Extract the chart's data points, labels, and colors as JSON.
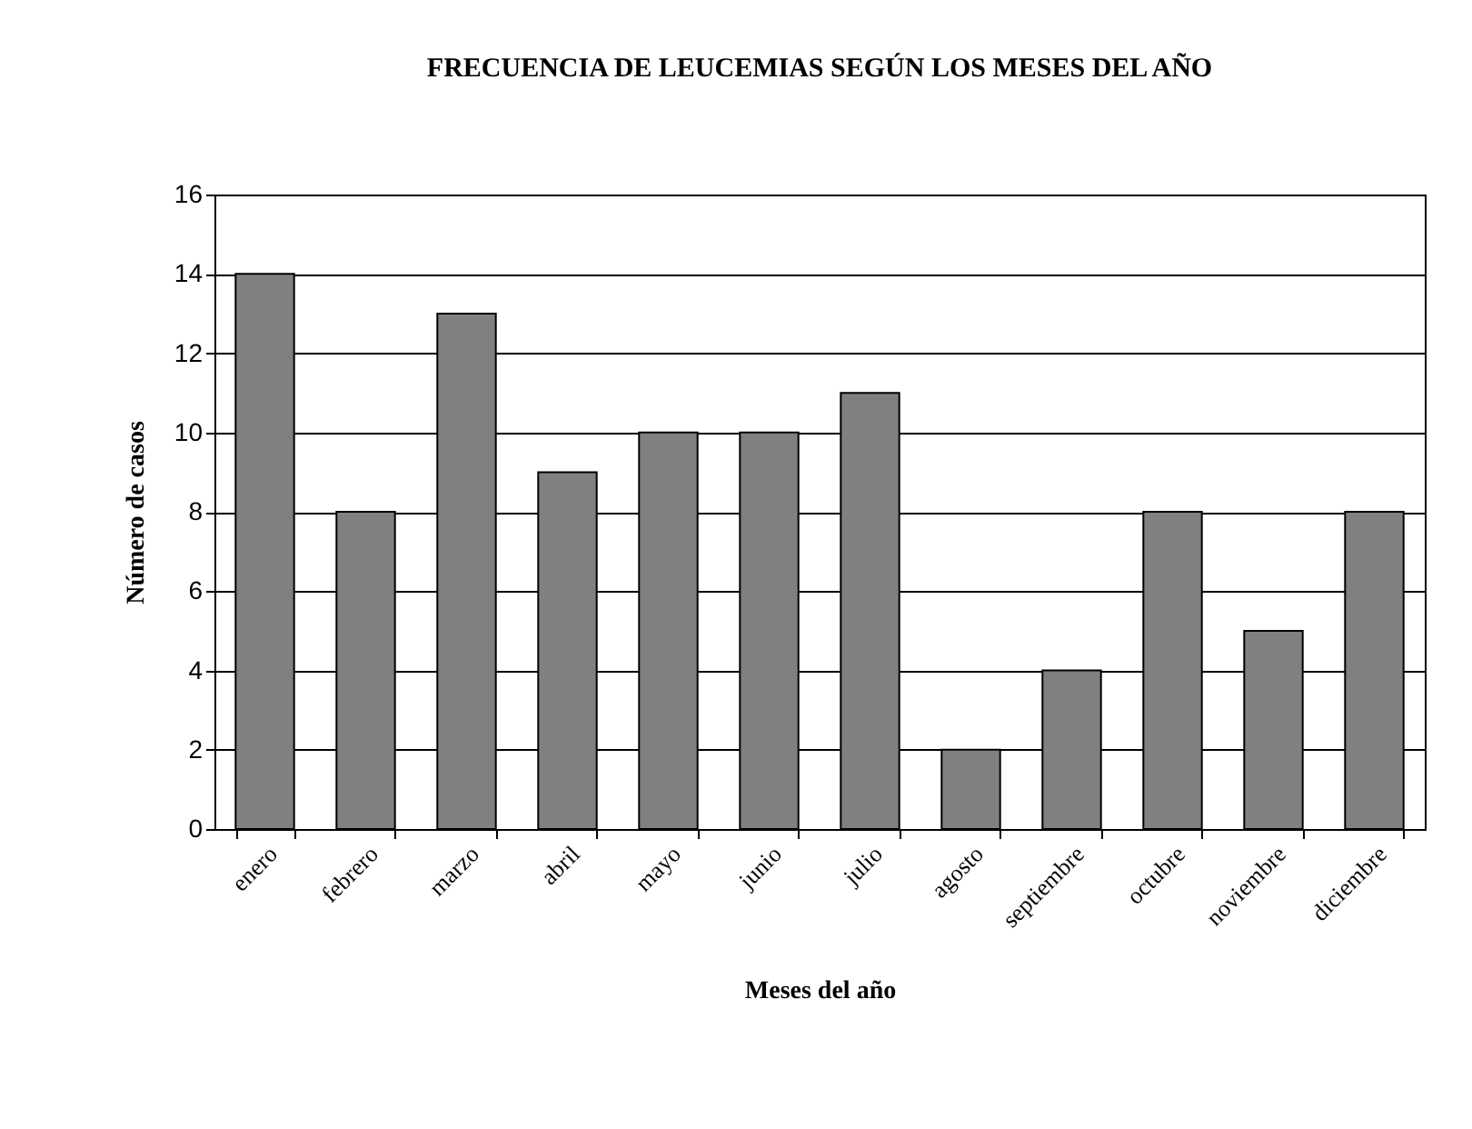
{
  "chart_data": {
    "type": "bar",
    "title": "FRECUENCIA DE LEUCEMIAS SEGÚN LOS MESES DEL AÑO",
    "xlabel": "Meses del año",
    "ylabel": "Número de casos",
    "categories": [
      "enero",
      "febrero",
      "marzo",
      "abril",
      "mayo",
      "junio",
      "julio",
      "agosto",
      "septiembre",
      "octubre",
      "noviembre",
      "diciembre"
    ],
    "values": [
      14,
      8,
      13,
      9,
      10,
      10,
      11,
      2,
      4,
      8,
      5,
      8
    ],
    "color": "#808080",
    "ylim": [
      0,
      16
    ],
    "yticks": [
      0,
      2,
      4,
      6,
      8,
      10,
      12,
      14,
      16
    ],
    "grid": "y"
  }
}
